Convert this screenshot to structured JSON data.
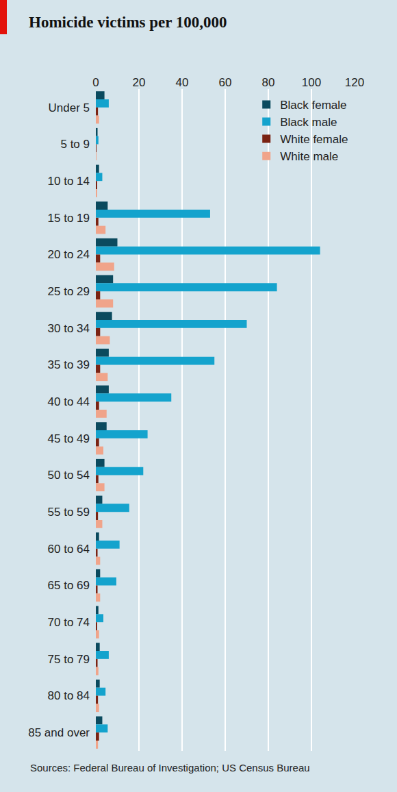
{
  "chart_data": {
    "type": "bar",
    "title": "Homicide victims per 100,000",
    "source": "Sources: Federal Bureau of Investigation; US Census Bureau",
    "orientation": "horizontal",
    "categories": [
      "Under 5",
      "5 to 9",
      "10 to 14",
      "15 to 19",
      "20 to 24",
      "25 to 29",
      "30 to 34",
      "35 to 39",
      "40 to 44",
      "45 to 49",
      "50 to 54",
      "55 to 59",
      "60 to 64",
      "65 to 69",
      "70 to 74",
      "75 to 79",
      "80 to 84",
      "85 and over"
    ],
    "series": [
      {
        "name": "Black female",
        "color": "#0b4a5e",
        "values": [
          4,
          0.8,
          1.5,
          5.5,
          10,
          8,
          7.5,
          6,
          6,
          5,
          4,
          3,
          1.5,
          2,
          1.2,
          1.8,
          1.8,
          3
        ]
      },
      {
        "name": "Black male",
        "color": "#14a3cd",
        "values": [
          6,
          1.2,
          3,
          53,
          104,
          84,
          70,
          55,
          35,
          24,
          22,
          15.5,
          11,
          9.5,
          3.5,
          6,
          4.5,
          5.5
        ]
      },
      {
        "name": "White female",
        "color": "#7a2313",
        "values": [
          1,
          0.3,
          0.4,
          1.2,
          2,
          2,
          2,
          2,
          1.5,
          1.5,
          1.2,
          1,
          0.8,
          0.8,
          0.6,
          0.8,
          1,
          1.5
        ]
      },
      {
        "name": "White male",
        "color": "#f0a48a",
        "values": [
          1.5,
          0.3,
          0.6,
          4.5,
          8.5,
          8,
          6.5,
          5.5,
          5,
          3.5,
          4,
          3,
          2,
          2,
          1.5,
          1.2,
          1.5,
          1
        ]
      }
    ],
    "xlim": [
      0,
      120
    ],
    "xticks": [
      0,
      20,
      40,
      60,
      80,
      100,
      120
    ],
    "grid": true,
    "legend": "top right"
  }
}
